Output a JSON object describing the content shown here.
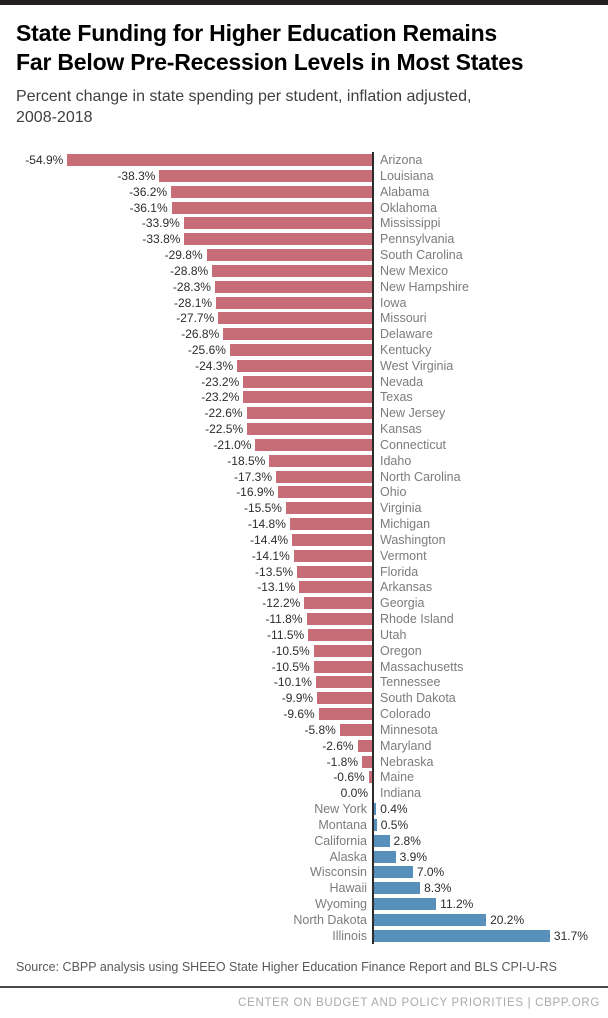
{
  "header": {
    "title_line1": "State Funding for Higher Education Remains",
    "title_line2": "Far Below Pre-Recession Levels in Most States",
    "subtitle": "Percent change in state spending per student, inflation adjusted, 2008-2018"
  },
  "footer": {
    "source": "Source: CBPP analysis using SHEEO State Higher Education Finance Report and BLS CPI-U-RS",
    "brand": "CENTER ON BUDGET AND POLICY PRIORITIES | CBPP.ORG"
  },
  "colors": {
    "negative_bar": "#c76d77",
    "positive_bar": "#5890bc",
    "axis": "#2b2b2b"
  },
  "chart_data": {
    "type": "bar",
    "orientation": "horizontal",
    "title": "Percent change in state spending per student, inflation adjusted, 2008-2018",
    "value_unit": "percent",
    "xlim": [
      -60,
      35
    ],
    "grid": false,
    "legend": false,
    "categories": [
      "Arizona",
      "Louisiana",
      "Alabama",
      "Oklahoma",
      "Mississippi",
      "Pennsylvania",
      "South Carolina",
      "New Mexico",
      "New Hampshire",
      "Iowa",
      "Missouri",
      "Delaware",
      "Kentucky",
      "West Virginia",
      "Nevada",
      "Texas",
      "New Jersey",
      "Kansas",
      "Connecticut",
      "Idaho",
      "North Carolina",
      "Ohio",
      "Virginia",
      "Michigan",
      "Washington",
      "Vermont",
      "Florida",
      "Arkansas",
      "Georgia",
      "Rhode Island",
      "Utah",
      "Oregon",
      "Massachusetts",
      "Tennessee",
      "South Dakota",
      "Colorado",
      "Minnesota",
      "Maryland",
      "Nebraska",
      "Maine",
      "Indiana",
      "New York",
      "Montana",
      "California",
      "Alaska",
      "Wisconsin",
      "Hawaii",
      "Wyoming",
      "North Dakota",
      "Illinois"
    ],
    "values": [
      -54.9,
      -38.3,
      -36.2,
      -36.1,
      -33.9,
      -33.8,
      -29.8,
      -28.8,
      -28.3,
      -28.1,
      -27.7,
      -26.8,
      -25.6,
      -24.3,
      -23.2,
      -23.2,
      -22.6,
      -22.5,
      -21.0,
      -18.5,
      -17.3,
      -16.9,
      -15.5,
      -14.8,
      -14.4,
      -14.1,
      -13.5,
      -13.1,
      -12.2,
      -11.8,
      -11.5,
      -10.5,
      -10.5,
      -10.1,
      -9.9,
      -9.6,
      -5.8,
      -2.6,
      -1.8,
      -0.6,
      0.0,
      0.4,
      0.5,
      2.8,
      3.9,
      7.0,
      8.3,
      11.2,
      20.2,
      31.7
    ]
  }
}
